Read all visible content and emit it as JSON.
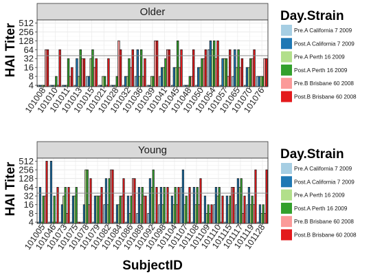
{
  "chart_data": {
    "type": "bar",
    "xlabel": "SubjectID",
    "ylabel": "HAI Titer",
    "y_scale": "log2",
    "y_ticks": [
      4,
      8,
      16,
      32,
      64,
      128,
      256,
      512
    ],
    "y_tick_labels": [
      "4",
      "8",
      "16",
      "32",
      "64",
      "128",
      "256",
      "512"
    ],
    "reference_line": 40,
    "legend": {
      "title": "Day.Strain",
      "position": "right",
      "entries": [
        {
          "label": "Pre.A California 7 2009",
          "color": "#a6cee3"
        },
        {
          "label": "Post.A California 7 2009",
          "color": "#1f78b4"
        },
        {
          "label": "Pre.A Perth 16 2009",
          "color": "#b2df8a"
        },
        {
          "label": "Post.A Perth 16 2009",
          "color": "#33a02c"
        },
        {
          "label": "Pre.B Brisbane 60 2008",
          "color": "#fb9a99"
        },
        {
          "label": "Post.B Brisbane 60 2008",
          "color": "#e31a1c"
        }
      ]
    },
    "panels": [
      {
        "strip": "Older",
        "categories": [
          "101008",
          "101010",
          "101011",
          "101013",
          "101015",
          "101021",
          "101028",
          "101032",
          "101036",
          "101039",
          "101041",
          "101045",
          "101048",
          "101050",
          "101054",
          "101057",
          "101065",
          "101070",
          "101076"
        ],
        "series": [
          {
            "name": "Pre.A California 7 2009",
            "values": [
              4,
              4,
              4,
              4,
              8,
              4,
              4,
              4,
              8,
              4,
              8,
              4,
              4,
              4,
              64,
              4,
              8,
              4,
              8
            ]
          },
          {
            "name": "Post.A California 7 2009",
            "values": [
              4,
              4,
              4,
              32,
              8,
              4,
              4,
              8,
              64,
              4,
              16,
              16,
              4,
              16,
              128,
              32,
              64,
              16,
              8
            ]
          },
          {
            "name": "Pre.A Perth 16 2009",
            "values": [
              4,
              4,
              4,
              8,
              32,
              8,
              4,
              8,
              8,
              8,
              16,
              16,
              4,
              16,
              64,
              32,
              16,
              16,
              8
            ]
          },
          {
            "name": "Post.A Perth 16 2009",
            "values": [
              4,
              8,
              32,
              64,
              64,
              8,
              8,
              32,
              64,
              8,
              32,
              128,
              8,
              32,
              128,
              32,
              64,
              32,
              8
            ]
          },
          {
            "name": "Pre.B Brisbane 60 2008",
            "values": [
              64,
              4,
              8,
              32,
              16,
              4,
              128,
              16,
              8,
              128,
              64,
              16,
              8,
              32,
              32,
              8,
              16,
              32,
              32
            ]
          },
          {
            "name": "Post.B Brisbane 60 2008",
            "values": [
              64,
              64,
              16,
              32,
              32,
              32,
              64,
              64,
              32,
              128,
              64,
              64,
              64,
              64,
              128,
              64,
              32,
              64,
              32
            ]
          }
        ]
      },
      {
        "strip": "Young",
        "categories": [
          "101005",
          "101046",
          "101073",
          "101075",
          "101078",
          "101079",
          "101082",
          "101084",
          "101086",
          "101089",
          "101092",
          "101098",
          "101104",
          "101107",
          "101108",
          "101109",
          "101110",
          "101115",
          "101117",
          "101119",
          "101128"
        ],
        "series": [
          {
            "name": "Pre.A California 7 2009",
            "values": [
              4,
              4,
              4,
              4,
              4,
              4,
              16,
              4,
              4,
              8,
              8,
              16,
              4,
              64,
              4,
              4,
              16,
              4,
              16,
              16,
              4
            ]
          },
          {
            "name": "Post.A California 7 2009",
            "values": [
              64,
              512,
              16,
              32,
              16,
              32,
              128,
              16,
              32,
              64,
              128,
              64,
              32,
              256,
              64,
              32,
              64,
              32,
              128,
              64,
              16
            ]
          },
          {
            "name": "Pre.A Perth 16 2009",
            "values": [
              4,
              4,
              32,
              32,
              256,
              32,
              16,
              16,
              8,
              16,
              64,
              16,
              16,
              16,
              16,
              8,
              32,
              16,
              64,
              16,
              8
            ]
          },
          {
            "name": "Post.A Perth 16 2009",
            "values": [
              32,
              32,
              64,
              64,
              256,
              32,
              128,
              32,
              32,
              64,
              256,
              64,
              64,
              32,
              64,
              16,
              64,
              32,
              128,
              32,
              16
            ]
          },
          {
            "name": "Pre.B Brisbane 60 2008",
            "values": [
              32,
              4,
              8,
              4,
              16,
              32,
              256,
              32,
              128,
              32,
              4,
              4,
              16,
              4,
              16,
              8,
              4,
              64,
              8,
              16,
              8
            ]
          },
          {
            "name": "Post.B Brisbane 60 2008",
            "values": [
              512,
              64,
              64,
              4,
              128,
              64,
              256,
              128,
              128,
              32,
              64,
              64,
              64,
              64,
              128,
              16,
              32,
              64,
              32,
              256,
              256
            ]
          }
        ]
      }
    ]
  }
}
